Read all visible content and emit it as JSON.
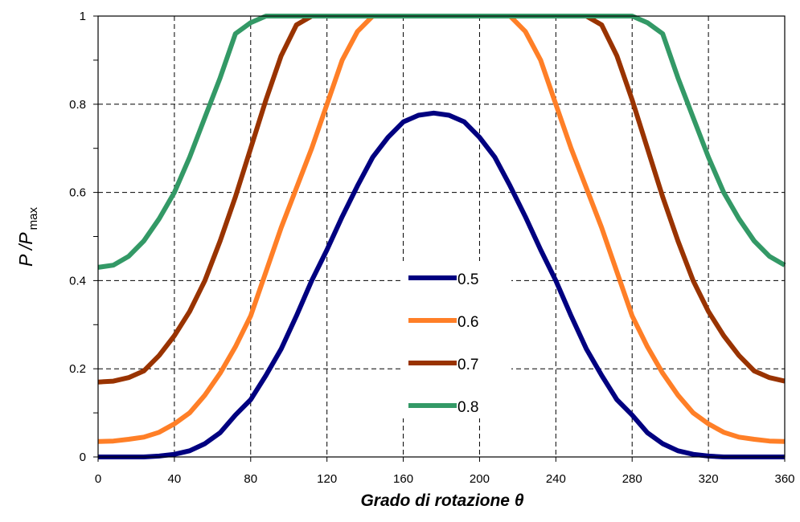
{
  "chart_data": {
    "type": "line",
    "title": "",
    "xlabel": "Grado di rotazione θ",
    "ylabel": {
      "main": "P /P",
      "subscript": "max"
    },
    "xlim": [
      0,
      360
    ],
    "ylim": [
      0,
      1
    ],
    "xticks": [
      0,
      40,
      80,
      120,
      160,
      200,
      240,
      280,
      320,
      360
    ],
    "yticks": [
      0,
      0.2,
      0.4,
      0.6,
      0.8,
      1
    ],
    "ytick_labels": [
      "0",
      "0.2",
      "0.4",
      "0.6",
      "0.8",
      "1"
    ],
    "grid": "dashed",
    "legend_position": "center",
    "x": [
      0,
      8,
      16,
      24,
      32,
      40,
      48,
      56,
      64,
      72,
      80,
      88,
      96,
      104,
      112,
      120,
      128,
      136,
      144,
      152,
      160,
      168,
      176,
      184,
      192,
      200,
      208,
      216,
      224,
      232,
      240,
      248,
      256,
      264,
      272,
      280,
      288,
      296,
      304,
      312,
      320,
      328,
      336,
      344,
      352,
      360
    ],
    "series": [
      {
        "name": "0.5",
        "color": "#000080",
        "values": [
          0.0,
          0.0,
          0.0,
          0.0,
          0.002,
          0.006,
          0.014,
          0.03,
          0.055,
          0.095,
          0.13,
          0.185,
          0.245,
          0.32,
          0.4,
          0.47,
          0.545,
          0.615,
          0.68,
          0.725,
          0.76,
          0.775,
          0.78,
          0.775,
          0.76,
          0.725,
          0.68,
          0.615,
          0.545,
          0.47,
          0.4,
          0.32,
          0.245,
          0.185,
          0.13,
          0.095,
          0.055,
          0.03,
          0.014,
          0.006,
          0.002,
          0.0,
          0.0,
          0.0,
          0.0,
          0.0
        ]
      },
      {
        "name": "0.6",
        "color": "#FF7F27",
        "values": [
          0.035,
          0.036,
          0.04,
          0.045,
          0.056,
          0.075,
          0.1,
          0.14,
          0.19,
          0.25,
          0.32,
          0.42,
          0.52,
          0.61,
          0.7,
          0.8,
          0.9,
          0.965,
          1.0,
          1.0,
          1.0,
          1.0,
          1.0,
          1.0,
          1.0,
          1.0,
          1.0,
          1.0,
          0.965,
          0.9,
          0.8,
          0.7,
          0.61,
          0.52,
          0.42,
          0.32,
          0.25,
          0.19,
          0.14,
          0.1,
          0.075,
          0.056,
          0.045,
          0.04,
          0.036,
          0.035
        ]
      },
      {
        "name": "0.7",
        "color": "#993300",
        "values": [
          0.17,
          0.172,
          0.18,
          0.195,
          0.23,
          0.275,
          0.33,
          0.4,
          0.49,
          0.59,
          0.7,
          0.81,
          0.91,
          0.98,
          1.0,
          1.0,
          1.0,
          1.0,
          1.0,
          1.0,
          1.0,
          1.0,
          1.0,
          1.0,
          1.0,
          1.0,
          1.0,
          1.0,
          1.0,
          1.0,
          1.0,
          1.0,
          1.0,
          0.98,
          0.91,
          0.81,
          0.7,
          0.59,
          0.49,
          0.4,
          0.33,
          0.275,
          0.23,
          0.195,
          0.18,
          0.172
        ]
      },
      {
        "name": "0.8",
        "color": "#339966",
        "values": [
          0.43,
          0.435,
          0.455,
          0.49,
          0.54,
          0.6,
          0.68,
          0.77,
          0.86,
          0.96,
          0.985,
          1.0,
          1.0,
          1.0,
          1.0,
          1.0,
          1.0,
          1.0,
          1.0,
          1.0,
          1.0,
          1.0,
          1.0,
          1.0,
          1.0,
          1.0,
          1.0,
          1.0,
          1.0,
          1.0,
          1.0,
          1.0,
          1.0,
          1.0,
          1.0,
          1.0,
          0.985,
          0.96,
          0.86,
          0.77,
          0.68,
          0.6,
          0.54,
          0.49,
          0.455,
          0.435
        ]
      }
    ]
  }
}
